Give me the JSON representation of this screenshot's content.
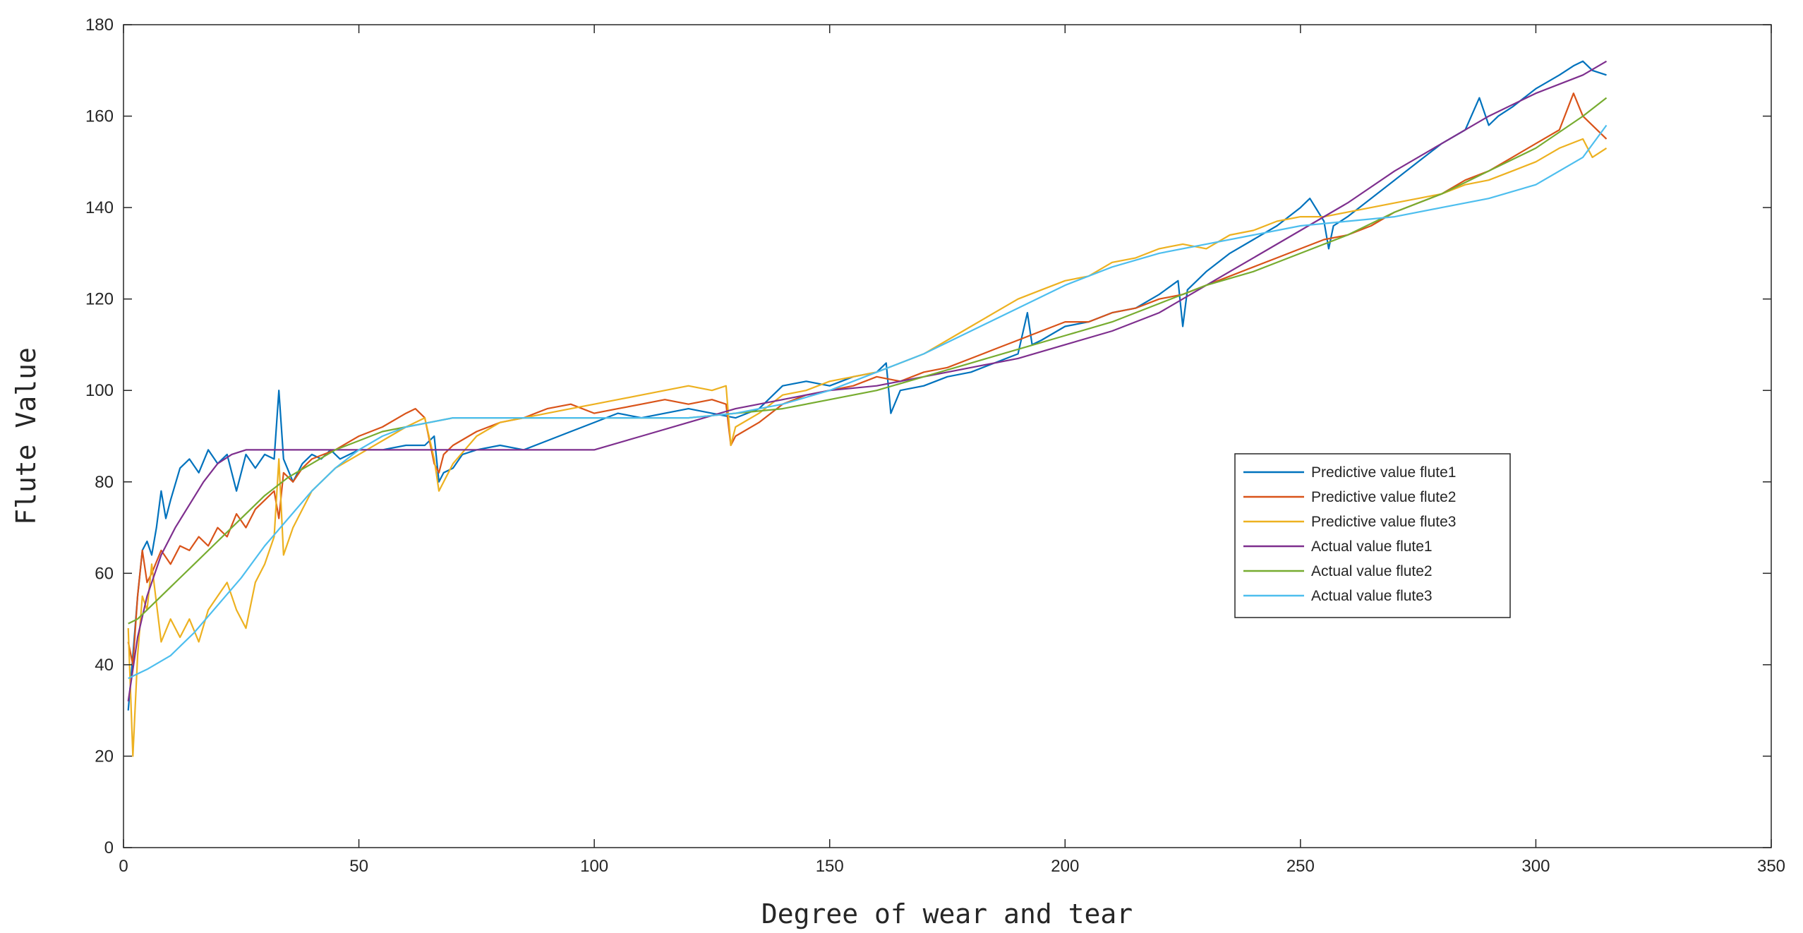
{
  "chart_data": {
    "type": "line",
    "xlabel": "Degree of wear and tear",
    "ylabel": "Flute Value",
    "xlim": [
      0,
      350
    ],
    "ylim": [
      0,
      180
    ],
    "xticks": [
      0,
      50,
      100,
      150,
      200,
      250,
      300,
      350
    ],
    "yticks": [
      0,
      20,
      40,
      60,
      80,
      100,
      120,
      140,
      160,
      180
    ],
    "grid": false,
    "legend_position": "center-right",
    "series": [
      {
        "name": "Predictive value flute1",
        "color": "#0072BD",
        "x": [
          1,
          2,
          3,
          4,
          5,
          6,
          7,
          8,
          9,
          10,
          12,
          14,
          16,
          18,
          20,
          22,
          24,
          26,
          28,
          30,
          32,
          33,
          34,
          36,
          38,
          40,
          42,
          44,
          46,
          48,
          50,
          55,
          60,
          64,
          66,
          67,
          68,
          70,
          72,
          75,
          80,
          85,
          90,
          95,
          100,
          105,
          110,
          115,
          120,
          125,
          130,
          135,
          140,
          145,
          150,
          155,
          160,
          162,
          163,
          165,
          170,
          175,
          180,
          185,
          190,
          192,
          193,
          195,
          200,
          205,
          210,
          215,
          220,
          224,
          225,
          226,
          230,
          235,
          240,
          245,
          250,
          252,
          255,
          256,
          257,
          260,
          265,
          270,
          275,
          280,
          285,
          288,
          290,
          292,
          295,
          300,
          305,
          308,
          310,
          312,
          315
        ],
        "y": [
          30,
          42,
          55,
          65,
          67,
          64,
          70,
          78,
          72,
          76,
          83,
          85,
          82,
          87,
          84,
          86,
          78,
          86,
          83,
          86,
          85,
          100,
          85,
          80,
          84,
          86,
          85,
          87,
          85,
          86,
          87,
          87,
          88,
          88,
          90,
          80,
          82,
          83,
          86,
          87,
          88,
          87,
          89,
          91,
          93,
          95,
          94,
          95,
          96,
          95,
          94,
          96,
          101,
          102,
          101,
          103,
          104,
          106,
          95,
          100,
          101,
          103,
          104,
          106,
          108,
          117,
          110,
          111,
          114,
          115,
          117,
          118,
          121,
          124,
          114,
          122,
          126,
          130,
          133,
          136,
          140,
          142,
          137,
          131,
          136,
          138,
          142,
          146,
          150,
          154,
          157,
          164,
          158,
          160,
          162,
          166,
          169,
          171,
          172,
          170,
          169
        ]
      },
      {
        "name": "Predictive value flute2",
        "color": "#D95319",
        "x": [
          1,
          2,
          3,
          4,
          5,
          6,
          8,
          10,
          12,
          14,
          16,
          18,
          20,
          22,
          24,
          26,
          28,
          30,
          32,
          33,
          34,
          36,
          38,
          40,
          45,
          50,
          55,
          60,
          62,
          64,
          66,
          67,
          68,
          70,
          75,
          80,
          85,
          90,
          95,
          100,
          105,
          110,
          115,
          120,
          125,
          128,
          129,
          130,
          135,
          140,
          145,
          150,
          155,
          160,
          165,
          170,
          175,
          180,
          185,
          190,
          195,
          200,
          205,
          210,
          215,
          220,
          225,
          230,
          235,
          240,
          245,
          250,
          255,
          260,
          265,
          270,
          275,
          280,
          285,
          290,
          295,
          300,
          305,
          308,
          310,
          315
        ],
        "y": [
          45,
          40,
          55,
          65,
          58,
          60,
          65,
          62,
          66,
          65,
          68,
          66,
          70,
          68,
          73,
          70,
          74,
          76,
          78,
          72,
          82,
          80,
          83,
          85,
          87,
          90,
          92,
          95,
          96,
          94,
          84,
          82,
          86,
          88,
          91,
          93,
          94,
          96,
          97,
          95,
          96,
          97,
          98,
          97,
          98,
          97,
          88,
          90,
          93,
          97,
          99,
          100,
          101,
          103,
          102,
          104,
          105,
          107,
          109,
          111,
          113,
          115,
          115,
          117,
          118,
          120,
          121,
          123,
          125,
          127,
          129,
          131,
          133,
          134,
          136,
          139,
          141,
          143,
          146,
          148,
          151,
          154,
          157,
          165,
          160,
          155
        ]
      },
      {
        "name": "Predictive value flute3",
        "color": "#EDB120",
        "x": [
          1,
          2,
          3,
          4,
          5,
          6,
          8,
          10,
          12,
          14,
          16,
          18,
          20,
          22,
          24,
          26,
          28,
          30,
          32,
          33,
          34,
          36,
          38,
          40,
          45,
          50,
          55,
          60,
          64,
          66,
          67,
          68,
          70,
          75,
          80,
          85,
          90,
          95,
          100,
          105,
          110,
          115,
          120,
          125,
          128,
          129,
          130,
          135,
          140,
          145,
          150,
          155,
          160,
          165,
          170,
          175,
          180,
          185,
          190,
          195,
          200,
          205,
          210,
          215,
          220,
          225,
          230,
          235,
          240,
          245,
          250,
          255,
          260,
          265,
          270,
          275,
          280,
          285,
          290,
          295,
          300,
          305,
          310,
          312,
          315
        ],
        "y": [
          48,
          20,
          42,
          55,
          52,
          62,
          45,
          50,
          46,
          50,
          45,
          52,
          55,
          58,
          52,
          48,
          58,
          62,
          68,
          85,
          64,
          70,
          74,
          78,
          83,
          86,
          89,
          92,
          94,
          85,
          78,
          80,
          84,
          90,
          93,
          94,
          95,
          96,
          97,
          98,
          99,
          100,
          101,
          100,
          101,
          88,
          92,
          95,
          99,
          100,
          102,
          103,
          104,
          106,
          108,
          111,
          114,
          117,
          120,
          122,
          124,
          125,
          128,
          129,
          131,
          132,
          131,
          134,
          135,
          137,
          138,
          138,
          139,
          140,
          141,
          142,
          143,
          145,
          146,
          148,
          150,
          153,
          155,
          151,
          153
        ]
      },
      {
        "name": "Actual value flute1",
        "color": "#7E2F8E",
        "x": [
          1,
          3,
          5,
          8,
          11,
          14,
          17,
          20,
          23,
          26,
          30,
          40,
          50,
          60,
          70,
          80,
          90,
          100,
          110,
          120,
          130,
          140,
          150,
          160,
          170,
          180,
          190,
          200,
          210,
          220,
          230,
          240,
          250,
          260,
          270,
          280,
          290,
          300,
          310,
          315
        ],
        "y": [
          32,
          46,
          55,
          64,
          70,
          75,
          80,
          84,
          86,
          87,
          87,
          87,
          87,
          87,
          87,
          87,
          87,
          87,
          90,
          93,
          96,
          98,
          100,
          101,
          103,
          105,
          107,
          110,
          113,
          117,
          123,
          129,
          135,
          141,
          148,
          154,
          160,
          165,
          169,
          172
        ]
      },
      {
        "name": "Actual value flute2",
        "color": "#77AC30",
        "x": [
          1,
          3,
          5,
          10,
          15,
          20,
          25,
          30,
          35,
          40,
          45,
          50,
          55,
          60,
          65,
          70,
          80,
          90,
          100,
          110,
          120,
          130,
          140,
          150,
          160,
          170,
          180,
          190,
          200,
          210,
          220,
          230,
          240,
          250,
          260,
          270,
          280,
          290,
          300,
          310,
          315
        ],
        "y": [
          49,
          50,
          52,
          57,
          62,
          67,
          72,
          77,
          81,
          84,
          87,
          89,
          91,
          92,
          93,
          94,
          94,
          94,
          94,
          94,
          94,
          95,
          96,
          98,
          100,
          103,
          106,
          109,
          112,
          115,
          119,
          123,
          126,
          130,
          134,
          139,
          143,
          148,
          153,
          160,
          164
        ]
      },
      {
        "name": "Actual value flute3",
        "color": "#4DBEEE",
        "x": [
          1,
          3,
          5,
          10,
          15,
          20,
          25,
          30,
          35,
          40,
          45,
          50,
          55,
          60,
          65,
          70,
          80,
          90,
          100,
          110,
          120,
          130,
          140,
          150,
          160,
          170,
          180,
          190,
          200,
          210,
          220,
          230,
          240,
          250,
          260,
          270,
          280,
          290,
          300,
          310,
          315
        ],
        "y": [
          37,
          38,
          39,
          42,
          47,
          53,
          59,
          66,
          72,
          78,
          83,
          87,
          90,
          92,
          93,
          94,
          94,
          94,
          94,
          94,
          94,
          95,
          97,
          100,
          104,
          108,
          113,
          118,
          123,
          127,
          130,
          132,
          134,
          136,
          137,
          138,
          140,
          142,
          145,
          151,
          158
        ]
      }
    ]
  }
}
